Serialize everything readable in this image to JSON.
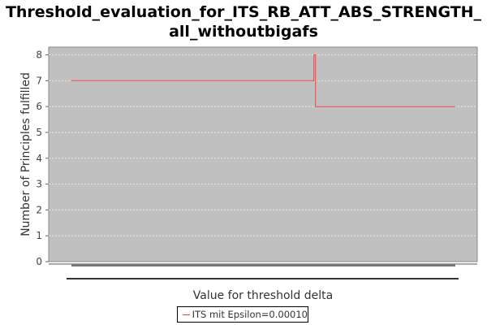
{
  "chart_data": {
    "type": "line",
    "title_lines": [
      "Threshold_evaluation_for_ITS_RB_ATT_ABS_STRENGTH_",
      "all_withoutbigafs"
    ],
    "xlabel": "Value for threshold delta",
    "ylabel": "Number of Principles fulfilled",
    "ylim": [
      0,
      8.3
    ],
    "yticks": [
      "0",
      "1",
      "2",
      "3",
      "4",
      "5",
      "6",
      "7",
      "8"
    ],
    "grid": true,
    "legend_position": "bottom",
    "series": [
      {
        "name": "ITS mit Epsilon=0.00010",
        "color": "#ff4040",
        "x": [
          0.0,
          0.6316,
          0.6316,
          0.6358,
          0.6358,
          1.0
        ],
        "y": [
          7,
          7,
          8,
          8,
          6,
          6
        ]
      }
    ],
    "colors": {
      "plot_background": "#c0c0c0",
      "grid": "#e8e8e8",
      "series": "#ff4040"
    }
  }
}
